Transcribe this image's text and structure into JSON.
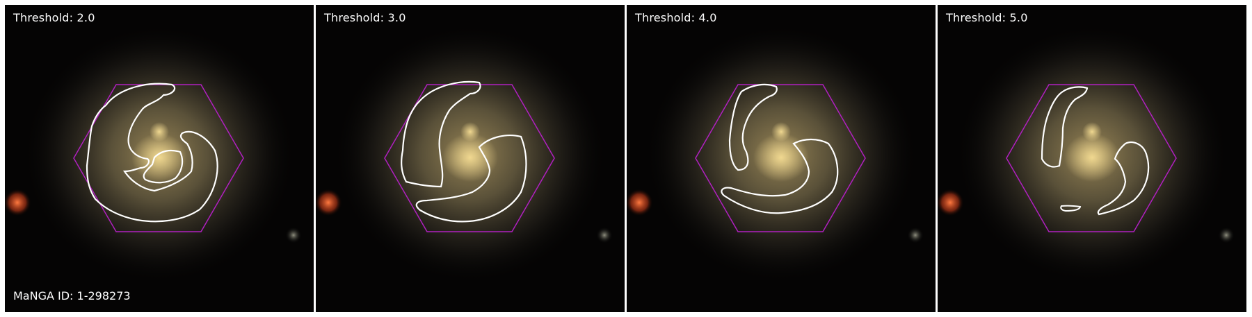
{
  "panels": [
    {
      "label": "Threshold: 2.0"
    },
    {
      "label": "Threshold: 3.0"
    },
    {
      "label": "Threshold: 4.0"
    },
    {
      "label": "Threshold: 5.0"
    }
  ],
  "galaxy_id": "MaNGA ID: 1-298273",
  "colors": {
    "background": "#000000",
    "hexagon": "#b020c0",
    "contour": "#ffffff",
    "label_text": "#ffffff"
  }
}
